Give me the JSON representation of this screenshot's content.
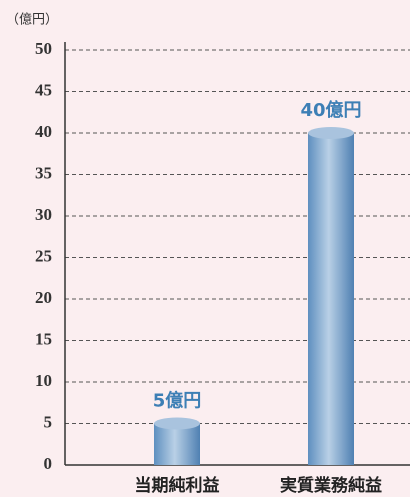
{
  "chart_data": {
    "type": "bar",
    "y_axis_label": "（億円）",
    "categories": [
      "当期純利益",
      "実質業務純益"
    ],
    "values": [
      5,
      40
    ],
    "value_labels": [
      "5億円",
      "40億円"
    ],
    "color": "#7fa6cc",
    "ylim": [
      0,
      50
    ],
    "yticks": [
      0,
      5,
      10,
      15,
      20,
      25,
      30,
      35,
      40,
      45,
      50
    ],
    "grid": true
  }
}
